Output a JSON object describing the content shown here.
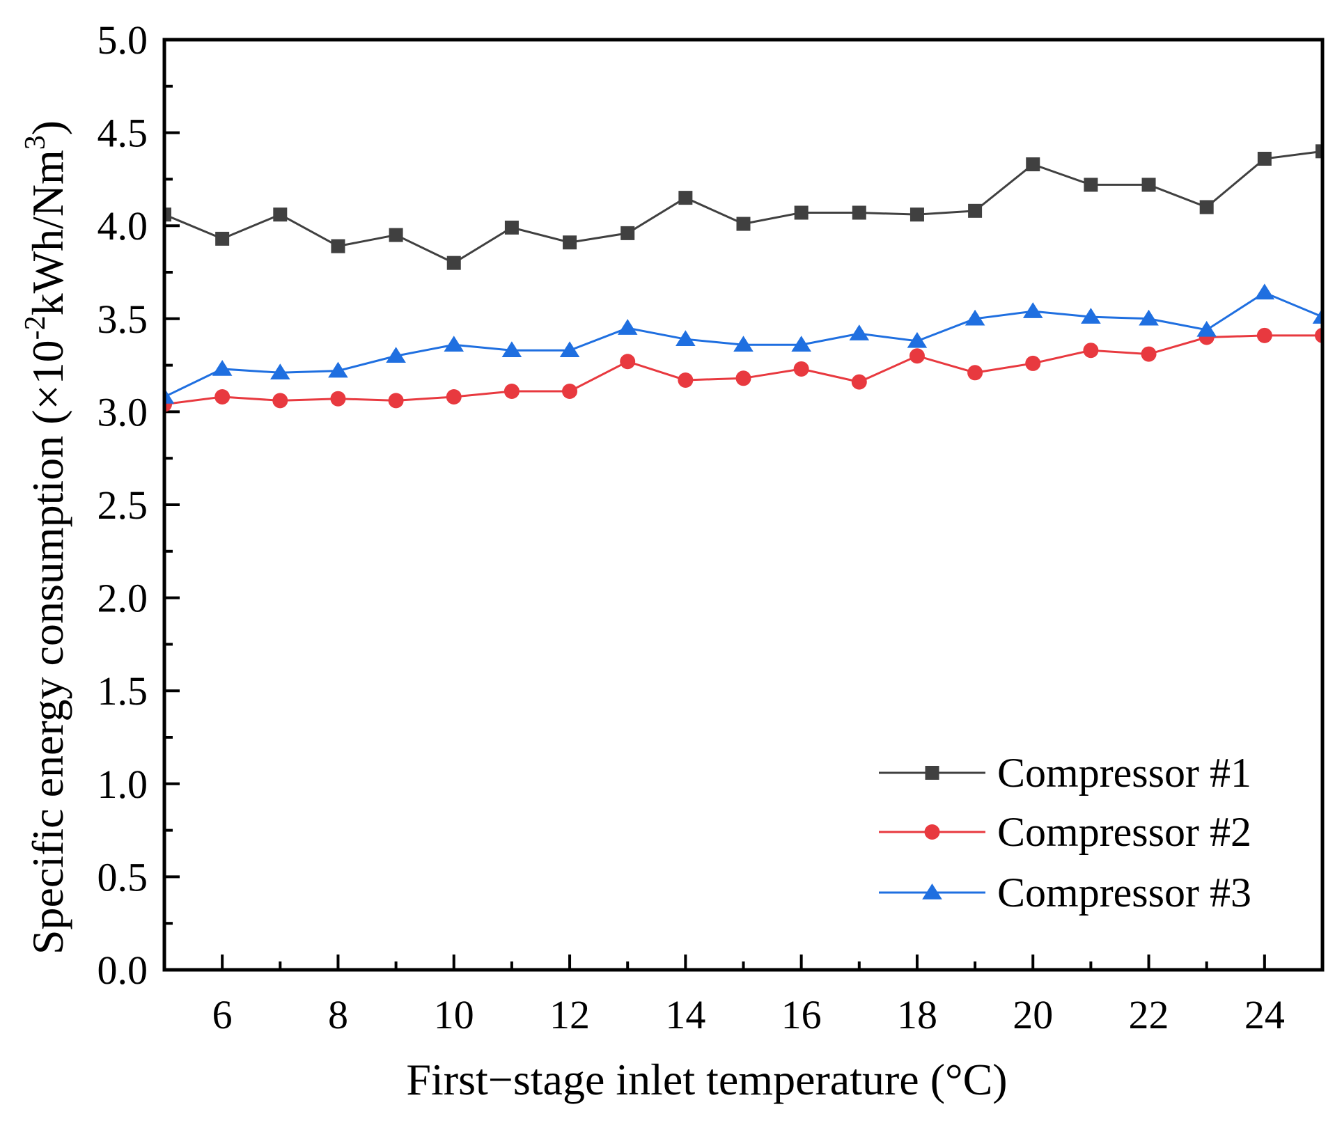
{
  "chart_data": {
    "type": "line",
    "title": "",
    "xlabel": "First−stage inlet temperature (°C)",
    "ylabel": {
      "prefix": "Specific energy consumption (×10",
      "exp1": "-2",
      "middle": "kWh/Nm",
      "exp2": "3",
      "suffix": ")"
    },
    "xlim": [
      5,
      25
    ],
    "ylim": [
      0.0,
      5.0
    ],
    "x_ticks": [
      6,
      8,
      10,
      12,
      14,
      16,
      18,
      20,
      22,
      24
    ],
    "x_tick_labels": [
      "6",
      "8",
      "10",
      "12",
      "14",
      "16",
      "18",
      "20",
      "22",
      "24"
    ],
    "y_ticks": [
      0.0,
      0.5,
      1.0,
      1.5,
      2.0,
      2.5,
      3.0,
      3.5,
      4.0,
      4.5,
      5.0
    ],
    "y_tick_labels": [
      "0.0",
      "0.5",
      "1.0",
      "1.5",
      "2.0",
      "2.5",
      "3.0",
      "3.5",
      "4.0",
      "4.5",
      "5.0"
    ],
    "grid": false,
    "legend_position": "bottom-right",
    "x": [
      5,
      6,
      7,
      8,
      9,
      10,
      11,
      12,
      13,
      14,
      15,
      16,
      17,
      18,
      19,
      20,
      21,
      22,
      23,
      24,
      25
    ],
    "series": [
      {
        "name": "Compressor #1",
        "color": "#404040",
        "marker": "square",
        "values": [
          4.06,
          3.93,
          4.06,
          3.89,
          3.95,
          3.8,
          3.99,
          3.91,
          3.96,
          4.15,
          4.01,
          4.07,
          4.07,
          4.06,
          4.08,
          4.33,
          4.22,
          4.22,
          4.1,
          4.36,
          4.4
        ]
      },
      {
        "name": "Compressor #2",
        "color": "#e8393f",
        "marker": "circle",
        "values": [
          3.04,
          3.08,
          3.06,
          3.07,
          3.06,
          3.08,
          3.11,
          3.11,
          3.27,
          3.17,
          3.18,
          3.23,
          3.16,
          3.3,
          3.21,
          3.26,
          3.33,
          3.31,
          3.4,
          3.41,
          3.41
        ]
      },
      {
        "name": "Compressor #3",
        "color": "#1f6fe0",
        "marker": "triangle",
        "values": [
          3.08,
          3.23,
          3.21,
          3.22,
          3.3,
          3.36,
          3.33,
          3.33,
          3.45,
          3.39,
          3.36,
          3.36,
          3.42,
          3.38,
          3.5,
          3.54,
          3.51,
          3.5,
          3.44,
          3.64,
          3.51
        ]
      }
    ]
  }
}
